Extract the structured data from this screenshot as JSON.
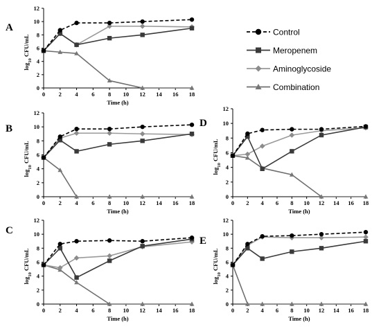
{
  "chart_data": [
    {
      "panel": "A",
      "type": "line",
      "x": [
        0,
        2,
        4,
        8,
        12,
        18
      ],
      "xlabel": "Time (h)",
      "ylabel_main": "log",
      "ylabel_sub": "10",
      "ylabel_rest": " CFU/mL",
      "xlim": [
        0,
        18
      ],
      "ylim": [
        0,
        12
      ],
      "xticks": [
        0,
        2,
        4,
        6,
        8,
        10,
        12,
        14,
        16,
        18
      ],
      "yticks": [
        0,
        2,
        4,
        6,
        8,
        10,
        12
      ],
      "series": [
        {
          "name": "Control",
          "values": [
            5.6,
            8.7,
            9.8,
            9.8,
            10.0,
            10.3
          ]
        },
        {
          "name": "Meropenem",
          "values": [
            5.6,
            8.2,
            6.5,
            7.5,
            8.0,
            9.0
          ]
        },
        {
          "name": "Aminoglycoside",
          "values": [
            5.6,
            8.2,
            6.5,
            9.3,
            9.3,
            9.2
          ]
        },
        {
          "name": "Combination",
          "values": [
            5.6,
            5.4,
            5.2,
            1.1,
            0,
            0
          ]
        }
      ]
    },
    {
      "panel": "B",
      "type": "line",
      "x": [
        0,
        2,
        4,
        8,
        12,
        18
      ],
      "xlabel": "Time (h)",
      "ylabel_main": "log",
      "ylabel_sub": "10",
      "ylabel_rest": " CFU/mL",
      "xlim": [
        0,
        18
      ],
      "ylim": [
        0,
        12
      ],
      "xticks": [
        0,
        2,
        4,
        6,
        8,
        10,
        12,
        14,
        16,
        18
      ],
      "yticks": [
        0,
        2,
        4,
        6,
        8,
        10,
        12
      ],
      "series": [
        {
          "name": "Control",
          "values": [
            5.6,
            8.6,
            9.7,
            9.7,
            10.0,
            10.3
          ]
        },
        {
          "name": "Meropenem",
          "values": [
            5.6,
            8.1,
            6.5,
            7.5,
            8.0,
            9.0
          ]
        },
        {
          "name": "Aminoglycoside",
          "values": [
            5.6,
            8.4,
            9.1,
            9.1,
            9.0,
            8.9
          ]
        },
        {
          "name": "Combination",
          "values": [
            5.6,
            3.8,
            0,
            0,
            0,
            0
          ]
        }
      ]
    },
    {
      "panel": "C",
      "type": "line",
      "x": [
        0,
        2,
        4,
        8,
        12,
        18
      ],
      "xlabel": "Time (h)",
      "ylabel_main": "log",
      "ylabel_sub": "10",
      "ylabel_rest": " CFU/mL",
      "xlim": [
        0,
        18
      ],
      "ylim": [
        0,
        12
      ],
      "xticks": [
        0,
        2,
        4,
        6,
        8,
        10,
        12,
        14,
        16,
        18
      ],
      "yticks": [
        0,
        2,
        4,
        6,
        8,
        10,
        12
      ],
      "series": [
        {
          "name": "Control",
          "values": [
            5.6,
            8.6,
            9.0,
            9.1,
            9.0,
            9.5
          ]
        },
        {
          "name": "Meropenem",
          "values": [
            5.6,
            8.0,
            3.8,
            6.2,
            8.3,
            9.3
          ]
        },
        {
          "name": "Aminoglycoside",
          "values": [
            5.6,
            5.2,
            6.6,
            6.9,
            8.2,
            8.9
          ]
        },
        {
          "name": "Combination",
          "values": [
            5.6,
            4.9,
            3.1,
            0,
            0,
            0
          ]
        }
      ]
    },
    {
      "panel": "D",
      "type": "line",
      "x": [
        0,
        2,
        4,
        8,
        12,
        18
      ],
      "xlabel": "Time (h)",
      "ylabel_main": "log",
      "ylabel_sub": "10",
      "ylabel_rest": " CFU/mL",
      "xlim": [
        0,
        18
      ],
      "ylim": [
        0,
        12
      ],
      "xticks": [
        0,
        2,
        4,
        6,
        8,
        10,
        12,
        14,
        16,
        18
      ],
      "yticks": [
        0,
        2,
        4,
        6,
        8,
        10,
        12
      ],
      "series": [
        {
          "name": "Control",
          "values": [
            5.6,
            8.6,
            9.1,
            9.2,
            9.2,
            9.6
          ]
        },
        {
          "name": "Meropenem",
          "values": [
            5.6,
            8.2,
            3.8,
            6.2,
            8.4,
            9.5
          ]
        },
        {
          "name": "Aminoglycoside",
          "values": [
            5.6,
            5.8,
            6.9,
            8.4,
            9.0,
            9.4
          ]
        },
        {
          "name": "Combination",
          "values": [
            5.6,
            5.3,
            3.9,
            3.0,
            0,
            0
          ]
        }
      ]
    },
    {
      "panel": "E",
      "type": "line",
      "x": [
        0,
        2,
        4,
        8,
        12,
        18
      ],
      "xlabel": "Time (h)",
      "ylabel_main": "log",
      "ylabel_sub": "10",
      "ylabel_rest": " CFU/mL",
      "xlim": [
        0,
        18
      ],
      "ylim": [
        0,
        12
      ],
      "xticks": [
        0,
        2,
        4,
        6,
        8,
        10,
        12,
        14,
        16,
        18
      ],
      "yticks": [
        0,
        2,
        4,
        6,
        8,
        10,
        12
      ],
      "series": [
        {
          "name": "Control",
          "values": [
            5.6,
            8.6,
            9.7,
            9.8,
            10.0,
            10.3
          ]
        },
        {
          "name": "Meropenem",
          "values": [
            5.6,
            8.0,
            6.5,
            7.5,
            8.0,
            9.0
          ]
        },
        {
          "name": "Aminoglycoside",
          "values": [
            5.6,
            8.4,
            9.6,
            9.5,
            9.5,
            9.6
          ]
        },
        {
          "name": "Combination",
          "values": [
            5.6,
            0,
            0,
            0,
            0,
            0
          ]
        }
      ]
    }
  ],
  "legend": {
    "items": [
      {
        "label": "Control",
        "marker": "circle",
        "color": "#000000",
        "dash": true
      },
      {
        "label": "Meropenem",
        "marker": "square",
        "color": "#3a3a3a",
        "dash": false
      },
      {
        "label": "Aminoglycoside",
        "marker": "diamond",
        "color": "#8c8c8c",
        "dash": false
      },
      {
        "label": "Combination",
        "marker": "triangle",
        "color": "#777777",
        "dash": false
      }
    ]
  }
}
